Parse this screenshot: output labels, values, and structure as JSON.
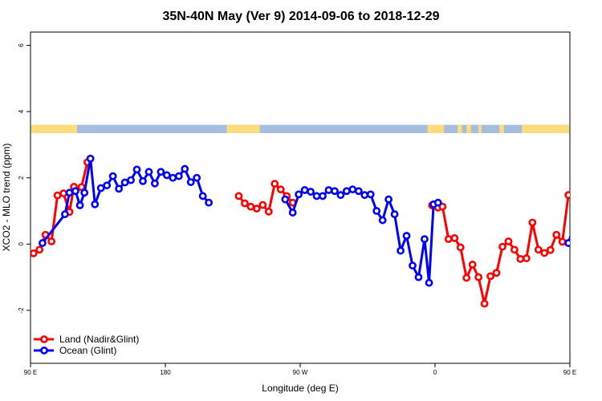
{
  "chart_data": {
    "type": "line",
    "title": "35N-40N May (Ver 9)   2014-09-06 to 2018-12-29",
    "xlabel": "Longitude (deg E)",
    "ylabel": "XCO2 - MLO trend (ppm)",
    "xlim": [
      90,
      450
    ],
    "ylim": [
      -3.6,
      6.4
    ],
    "x_ticks": [
      {
        "value": 90,
        "label": "90 E"
      },
      {
        "value": 180,
        "label": "180"
      },
      {
        "value": 270,
        "label": "90 W"
      },
      {
        "value": 360,
        "label": "0"
      },
      {
        "value": 450,
        "label": "90 E"
      },
      {
        "value": 540,
        "label": "180"
      }
    ],
    "y_ticks": [
      {
        "value": -2,
        "label": "-2"
      },
      {
        "value": 0,
        "label": "0"
      },
      {
        "value": 2,
        "label": "2"
      },
      {
        "value": 4,
        "label": "4"
      },
      {
        "value": 6,
        "label": "6"
      }
    ],
    "land_ocean_strip": {
      "y_range": [
        3.35,
        3.6
      ],
      "land_color": "#fedc7c",
      "ocean_color": "#a6bedd",
      "land_segments": [
        [
          90,
          121
        ],
        [
          221,
          243
        ],
        [
          355,
          360
        ],
        [
          360,
          366
        ],
        [
          375,
          378
        ],
        [
          381,
          384
        ],
        [
          389,
          391
        ],
        [
          403,
          406
        ],
        [
          418,
          451
        ]
      ]
    },
    "legend": {
      "position": "bottom-left",
      "entries": [
        {
          "label": "Land (Nadir&Glint)",
          "color": "#ff0000"
        },
        {
          "label": "Ocean (Glint)",
          "color": "#0000ff"
        }
      ]
    },
    "series": [
      {
        "name": "Land (Nadir&Glint)",
        "color": "#ff0000",
        "segments": [
          [
            [
              92,
              -0.28
            ],
            [
              96,
              -0.17
            ],
            [
              100,
              0.28
            ],
            [
              104,
              0.08
            ],
            [
              108,
              1.47
            ],
            [
              112,
              1.53
            ],
            [
              116,
              0.97
            ],
            [
              119,
              1.73
            ],
            [
              124,
              1.72
            ],
            [
              128,
              2.47
            ]
          ],
          [
            [
              229,
              1.45
            ],
            [
              233,
              1.23
            ],
            [
              237,
              1.13
            ],
            [
              241,
              1.07
            ],
            [
              245,
              1.18
            ],
            [
              249,
              0.98
            ],
            [
              253,
              1.82
            ],
            [
              257,
              1.65
            ],
            [
              261,
              1.45
            ],
            [
              265,
              1.25
            ]
          ],
          [
            [
              358,
              1.17
            ],
            [
              362,
              1.1
            ],
            [
              365,
              1.13
            ],
            [
              369,
              0.15
            ],
            [
              373,
              0.18
            ],
            [
              377,
              -0.1
            ],
            [
              381,
              -1.02
            ],
            [
              385,
              -0.62
            ],
            [
              389,
              -1.0
            ],
            [
              393,
              -1.8
            ],
            [
              397,
              -0.97
            ],
            [
              401,
              -0.87
            ],
            [
              405,
              -0.08
            ],
            [
              409,
              0.08
            ],
            [
              413,
              -0.17
            ],
            [
              417,
              -0.45
            ],
            [
              421,
              -0.43
            ],
            [
              425,
              0.65
            ],
            [
              429,
              -0.17
            ],
            [
              433,
              -0.27
            ],
            [
              437,
              -0.18
            ],
            [
              441,
              0.28
            ],
            [
              445,
              0.07
            ],
            [
              449,
              1.48
            ],
            [
              453,
              1.55
            ],
            [
              457,
              0.95
            ],
            [
              461,
              1.73
            ],
            [
              465,
              1.73
            ],
            [
              469,
              1.65
            ],
            [
              472,
              2.47
            ]
          ]
        ]
      },
      {
        "name": "Ocean (Glint)",
        "color": "#0000ff",
        "segments": [
          [
            [
              98,
              0.03
            ],
            [
              113,
              0.9
            ],
            [
              116,
              1.55
            ],
            [
              120,
              1.6
            ],
            [
              123,
              1.17
            ],
            [
              126,
              1.55
            ],
            [
              130,
              2.58
            ],
            [
              133,
              1.2
            ],
            [
              137,
              1.69
            ],
            [
              141,
              1.77
            ],
            [
              145,
              2.05
            ],
            [
              149,
              1.67
            ],
            [
              153,
              1.86
            ],
            [
              157,
              1.93
            ],
            [
              161,
              2.25
            ],
            [
              165,
              1.9
            ],
            [
              169,
              2.18
            ],
            [
              173,
              1.83
            ],
            [
              177,
              2.18
            ],
            [
              181,
              2.08
            ],
            [
              185,
              2.0
            ],
            [
              189,
              2.05
            ],
            [
              193,
              2.27
            ],
            [
              197,
              1.87
            ],
            [
              201,
              2.0
            ],
            [
              205,
              1.45
            ],
            [
              209,
              1.25
            ]
          ],
          [
            [
              260,
              1.35
            ],
            [
              265,
              0.95
            ],
            [
              269,
              1.5
            ],
            [
              273,
              1.63
            ],
            [
              277,
              1.58
            ],
            [
              281,
              1.45
            ],
            [
              285,
              1.45
            ],
            [
              289,
              1.63
            ],
            [
              293,
              1.6
            ],
            [
              297,
              1.48
            ],
            [
              301,
              1.6
            ],
            [
              305,
              1.65
            ],
            [
              309,
              1.6
            ],
            [
              313,
              1.48
            ],
            [
              317,
              1.5
            ],
            [
              321,
              1.0
            ],
            [
              325,
              0.72
            ],
            [
              329,
              1.35
            ],
            [
              333,
              0.9
            ],
            [
              337,
              -0.2
            ],
            [
              341,
              0.25
            ],
            [
              345,
              -0.65
            ],
            [
              349,
              -1.0
            ],
            [
              353,
              0.15
            ],
            [
              356,
              -1.17
            ],
            [
              359,
              1.2
            ],
            [
              362,
              1.25
            ]
          ]
        ],
        "segments_right": [
          [
            449,
            0.03
          ],
          [
            455,
            0.9
          ],
          [
            458,
            1.55
          ],
          [
            462,
            1.6
          ],
          [
            466,
            1.17
          ],
          [
            470,
            1.55
          ],
          [
            473,
            2.58
          ],
          [
            477,
            1.2
          ],
          [
            481,
            1.69
          ],
          [
            485,
            1.77
          ],
          [
            489,
            2.05
          ],
          [
            493,
            1.67
          ],
          [
            497,
            1.86
          ],
          [
            501,
            1.93
          ]
        ]
      }
    ]
  }
}
